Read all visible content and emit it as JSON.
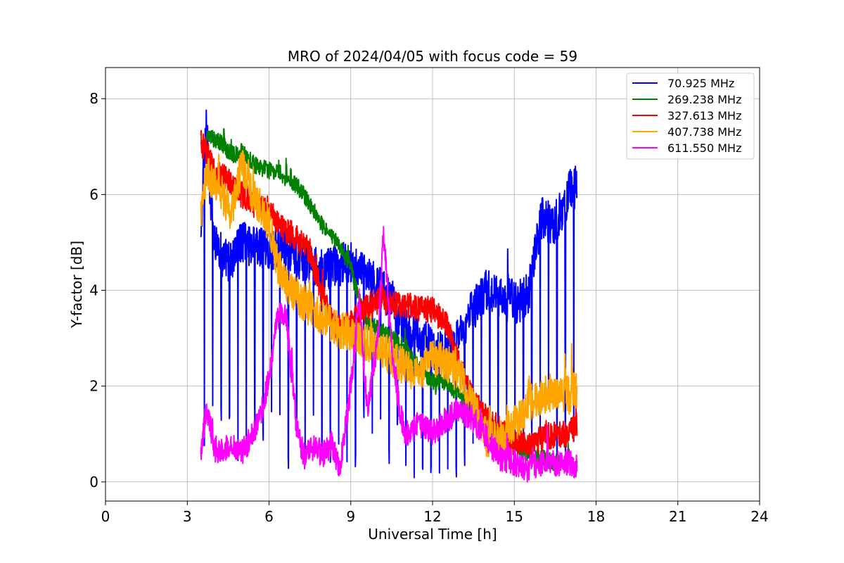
{
  "chart_data": {
    "type": "line",
    "title": "MRO of 2024/04/05 with focus code = 59",
    "xlabel": "Universal Time [h]",
    "ylabel": "Y-factor [dB]",
    "xlim": [
      0,
      24
    ],
    "ylim": [
      -0.4,
      8.65
    ],
    "xticks": [
      "0",
      "3",
      "6",
      "9",
      "12",
      "15",
      "18",
      "21",
      "24"
    ],
    "yticks": [
      "0",
      "2",
      "4",
      "6",
      "8"
    ],
    "grid": true,
    "legend": "top-right",
    "series": [
      {
        "name": "  70.925 MHz",
        "color": "#0000ff",
        "noise": 0.45,
        "dips": "periodic",
        "x": [
          3.5,
          3.6,
          3.7,
          3.8,
          4.0,
          4.3,
          4.6,
          5.0,
          5.5,
          6.0,
          6.5,
          7.0,
          7.5,
          8.0,
          8.5,
          9.0,
          9.5,
          10.0,
          10.5,
          11.0,
          11.5,
          12.0,
          12.5,
          13.0,
          13.5,
          14.0,
          14.5,
          15.0,
          15.5,
          16.0,
          16.5,
          17.0,
          17.3
        ],
        "y": [
          5.0,
          6.5,
          7.6,
          6.3,
          5.1,
          4.7,
          4.6,
          5.0,
          4.9,
          4.8,
          4.9,
          4.7,
          4.6,
          4.4,
          4.5,
          4.6,
          4.3,
          4.1,
          3.8,
          3.2,
          3.0,
          2.8,
          2.7,
          3.0,
          3.6,
          4.0,
          3.8,
          3.7,
          3.9,
          5.5,
          5.4,
          6.0,
          6.2
        ]
      },
      {
        "name": "269.238 MHz",
        "color": "#008000",
        "noise": 0.18,
        "dips": "none",
        "x": [
          3.5,
          3.8,
          4.2,
          4.6,
          5.0,
          5.5,
          6.0,
          6.5,
          7.0,
          7.5,
          8.0,
          8.5,
          9.0,
          9.3,
          9.6,
          10.0,
          10.5,
          11.0,
          11.5,
          12.0,
          12.5,
          13.0,
          13.5,
          14.0,
          14.5,
          15.0,
          15.5,
          16.0,
          16.5,
          17.0,
          17.3
        ],
        "y": [
          7.0,
          7.2,
          7.1,
          6.8,
          6.9,
          6.6,
          6.5,
          6.4,
          6.2,
          5.8,
          5.3,
          5.0,
          4.5,
          3.8,
          3.3,
          3.2,
          3.0,
          2.8,
          2.4,
          2.1,
          2.1,
          1.8,
          1.4,
          1.2,
          1.0,
          0.7,
          0.6,
          0.5,
          0.4,
          0.4,
          0.3
        ]
      },
      {
        "name": "327.613 MHz",
        "color": "#ff0000",
        "noise": 0.28,
        "dips": "none",
        "x": [
          3.5,
          3.7,
          4.0,
          4.5,
          5.0,
          5.5,
          6.0,
          6.5,
          7.0,
          7.5,
          8.0,
          8.5,
          9.0,
          9.5,
          10.0,
          10.5,
          11.0,
          11.5,
          12.0,
          12.5,
          13.0,
          13.5,
          14.0,
          14.5,
          15.0,
          15.5,
          16.0,
          16.5,
          17.0,
          17.3
        ],
        "y": [
          7.1,
          6.9,
          6.5,
          6.3,
          6.0,
          5.8,
          5.6,
          5.3,
          5.1,
          4.8,
          3.8,
          3.2,
          3.3,
          3.6,
          3.8,
          3.7,
          3.7,
          3.6,
          3.6,
          3.3,
          2.4,
          1.7,
          1.3,
          1.1,
          0.8,
          0.8,
          0.9,
          1.0,
          1.0,
          1.2
        ]
      },
      {
        "name": "407.738 MHz",
        "color": "#ffa500",
        "noise": 0.4,
        "dips": "none",
        "x": [
          3.5,
          3.7,
          4.0,
          4.3,
          4.6,
          5.0,
          5.3,
          5.6,
          6.0,
          6.3,
          6.6,
          7.0,
          7.5,
          8.0,
          8.5,
          9.0,
          9.5,
          10.0,
          10.5,
          11.0,
          11.5,
          12.0,
          12.5,
          13.0,
          13.5,
          14.0,
          14.5,
          15.0,
          15.5,
          16.0,
          16.5,
          17.0,
          17.3
        ],
        "y": [
          5.6,
          6.4,
          6.3,
          6.0,
          5.6,
          6.6,
          6.1,
          5.8,
          5.4,
          4.6,
          4.1,
          3.9,
          3.6,
          3.4,
          3.2,
          3.1,
          2.9,
          2.8,
          2.6,
          2.4,
          2.2,
          2.6,
          2.5,
          2.2,
          1.6,
          0.9,
          0.9,
          1.2,
          1.6,
          1.8,
          1.9,
          1.8,
          1.9
        ]
      },
      {
        "name": "611.550 MHz",
        "color": "#ff00ff",
        "noise": 0.28,
        "dips": "none",
        "x": [
          3.5,
          3.7,
          4.0,
          4.3,
          4.6,
          5.0,
          5.3,
          5.7,
          6.0,
          6.3,
          6.6,
          7.0,
          7.3,
          7.6,
          8.0,
          8.3,
          8.6,
          9.0,
          9.3,
          9.6,
          10.0,
          10.2,
          10.5,
          10.8,
          11.0,
          11.5,
          12.0,
          12.5,
          13.0,
          13.5,
          14.0,
          14.5,
          15.0,
          15.5,
          16.0,
          16.5,
          17.0,
          17.3
        ],
        "y": [
          0.5,
          1.6,
          0.7,
          0.6,
          0.8,
          0.6,
          0.9,
          1.4,
          2.2,
          3.4,
          3.6,
          1.2,
          0.5,
          0.7,
          0.6,
          0.8,
          0.3,
          2.0,
          3.8,
          1.5,
          3.0,
          5.2,
          2.8,
          1.5,
          1.0,
          1.2,
          1.0,
          1.3,
          1.5,
          1.3,
          0.9,
          0.5,
          0.4,
          0.3,
          0.4,
          0.4,
          0.4,
          0.3
        ]
      }
    ]
  }
}
